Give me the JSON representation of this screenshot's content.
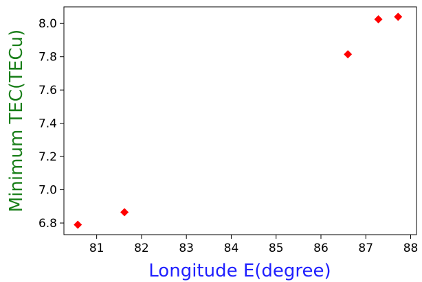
{
  "chart_data": {
    "type": "scatter",
    "title": "",
    "xlabel": "Longitude E(degree)",
    "ylabel": "Minimum TEC(TECu)",
    "xlim": [
      80.27,
      88.13
    ],
    "ylim": [
      6.73,
      8.1
    ],
    "xticks": [
      81,
      82,
      83,
      84,
      85,
      86,
      87,
      88
    ],
    "yticks": [
      6.8,
      7.0,
      7.2,
      7.4,
      7.6,
      7.8,
      8.0
    ],
    "xtick_labels": [
      "81",
      "82",
      "83",
      "84",
      "85",
      "86",
      "87",
      "88"
    ],
    "ytick_labels": [
      "6.8",
      "7.0",
      "7.2",
      "7.4",
      "7.6",
      "7.8",
      "8.0"
    ],
    "grid": false,
    "colors": {
      "marker": "#ff0000",
      "xlabel": "#1f1fff",
      "ylabel": "#1a7f1a"
    },
    "marker_shape": "diamond",
    "series": [
      {
        "points": [
          {
            "x": 80.58,
            "y": 6.79
          },
          {
            "x": 81.62,
            "y": 6.865
          },
          {
            "x": 86.6,
            "y": 7.815
          },
          {
            "x": 87.28,
            "y": 8.025
          },
          {
            "x": 87.72,
            "y": 8.04
          }
        ]
      }
    ]
  }
}
